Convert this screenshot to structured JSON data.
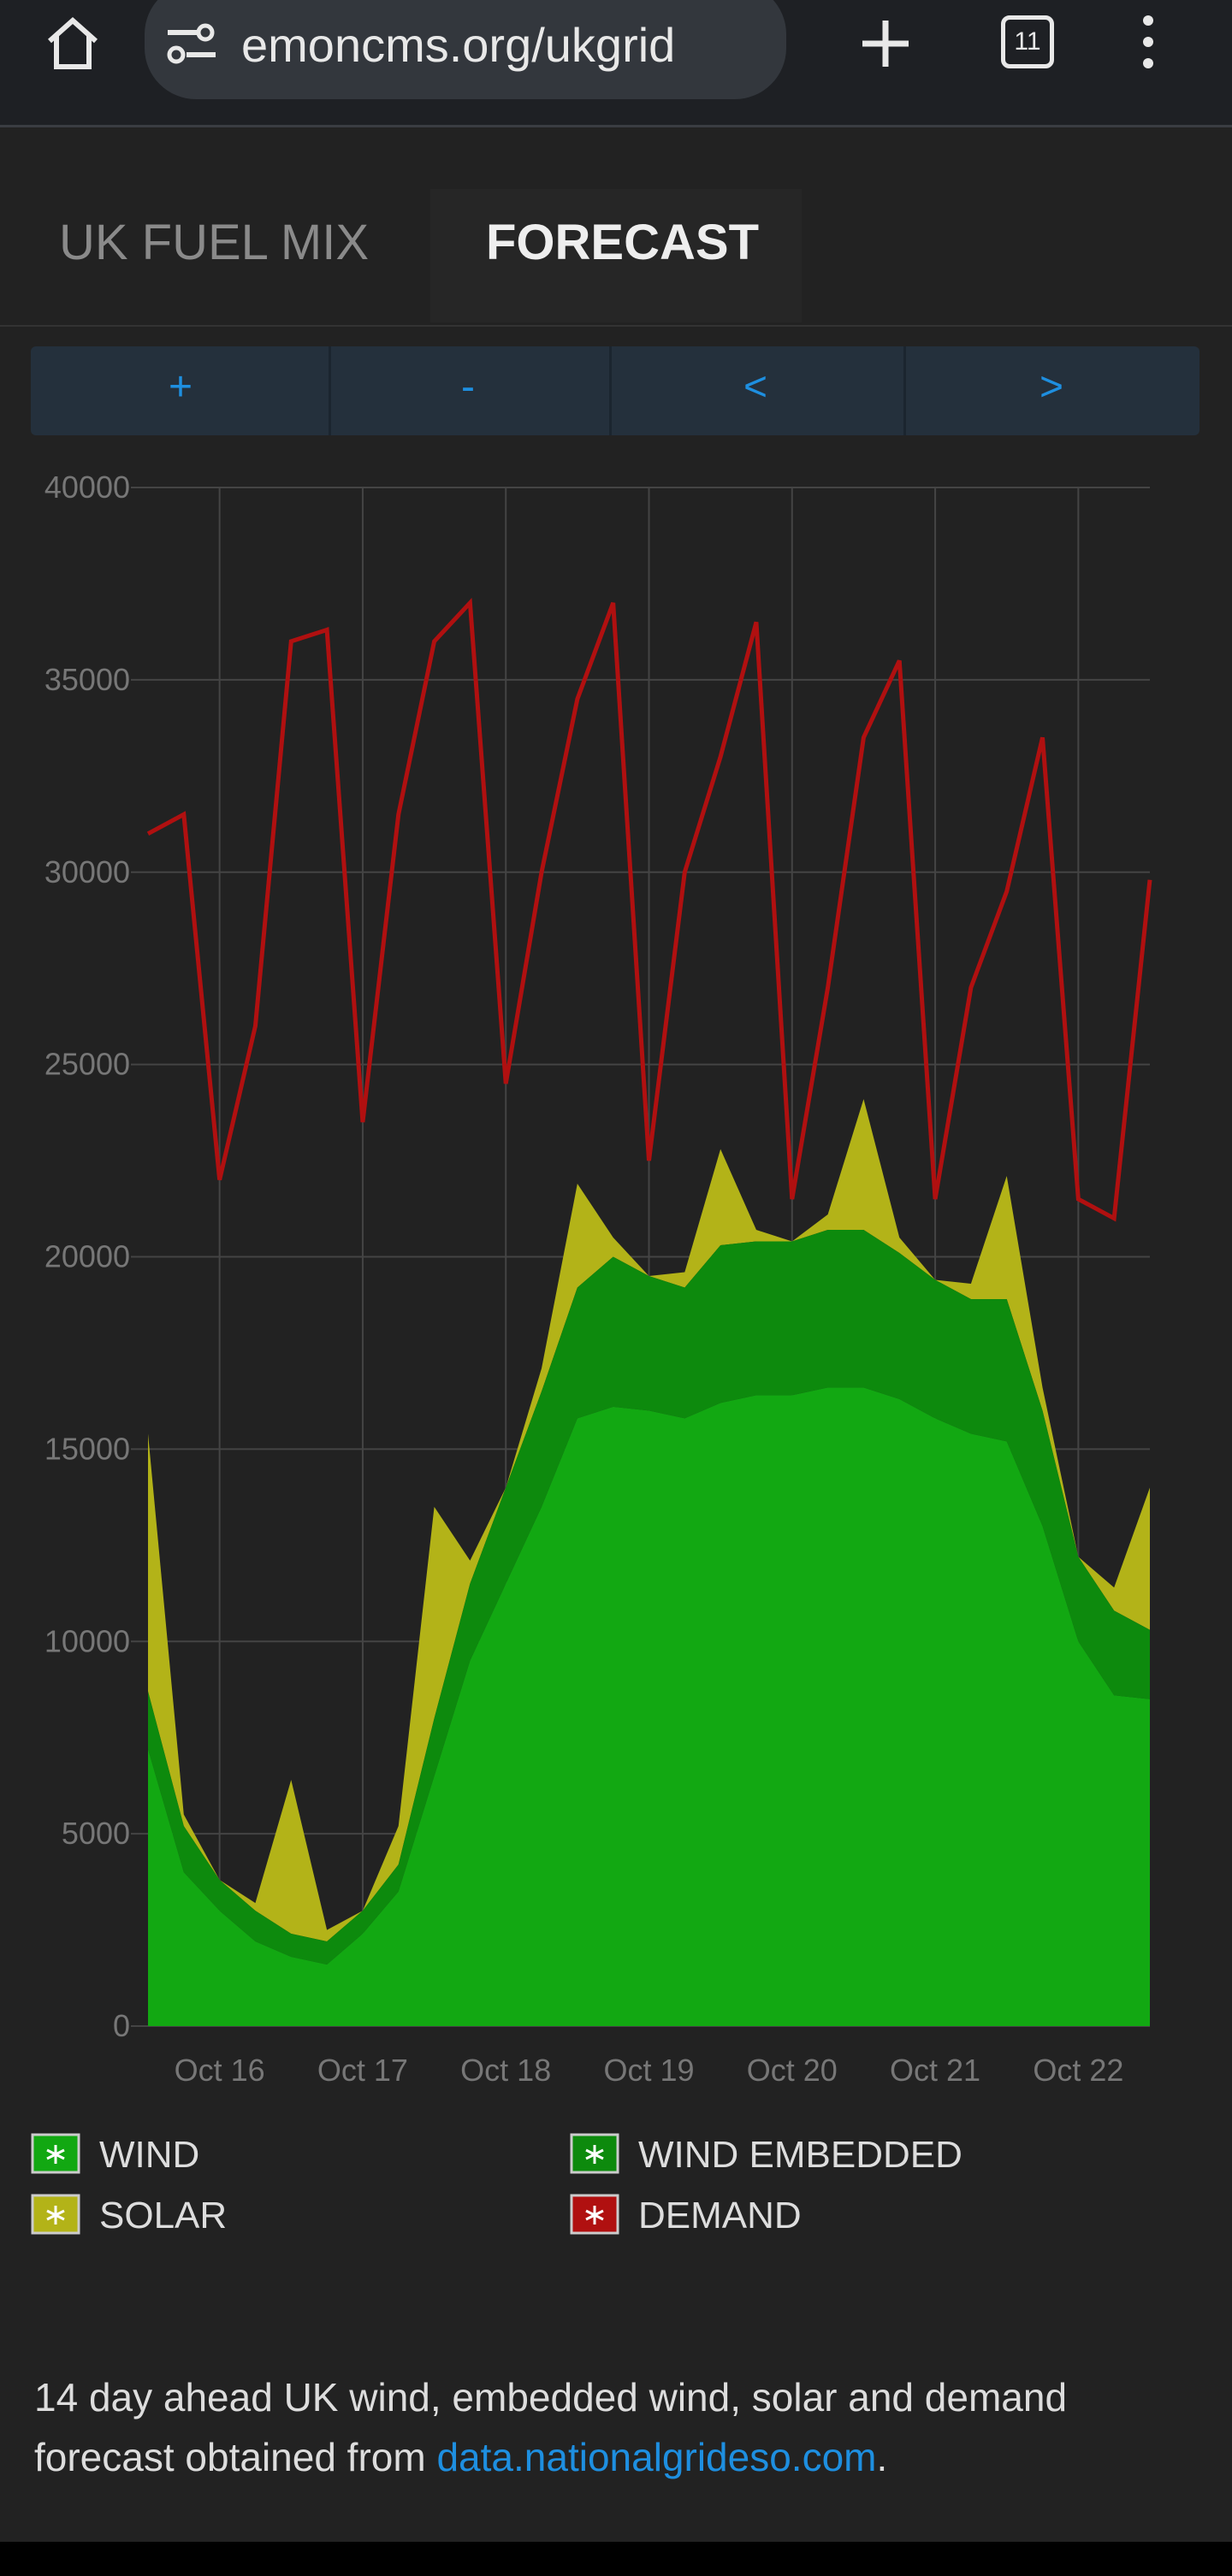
{
  "browser": {
    "url": "emoncms.org/ukgrid",
    "tab_count": "11"
  },
  "tabs": [
    "UK FUEL MIX",
    "FORECAST"
  ],
  "controls": [
    "+",
    "-",
    "<",
    ">"
  ],
  "chart_data": {
    "type": "area",
    "stacked": true,
    "grid": true,
    "x": [
      15.5,
      15.75,
      16,
      16.25,
      16.5,
      16.75,
      17,
      17.25,
      17.5,
      17.75,
      18,
      18.25,
      18.5,
      18.75,
      19,
      19.25,
      19.5,
      19.75,
      20,
      20.25,
      20.5,
      20.75,
      21,
      21.25,
      21.5,
      21.75,
      22,
      22.25,
      22.5
    ],
    "xlim": [
      15.5,
      22.5
    ],
    "xticks": [
      {
        "value": 16,
        "label": "Oct 16"
      },
      {
        "value": 17,
        "label": "Oct 17"
      },
      {
        "value": 18,
        "label": "Oct 18"
      },
      {
        "value": 19,
        "label": "Oct 19"
      },
      {
        "value": 20,
        "label": "Oct 20"
      },
      {
        "value": 21,
        "label": "Oct 21"
      },
      {
        "value": 22,
        "label": "Oct 22"
      }
    ],
    "ylim": [
      0,
      40000
    ],
    "yticks": [
      0,
      5000,
      10000,
      15000,
      20000,
      25000,
      30000,
      35000,
      40000
    ],
    "series": [
      {
        "name": "WIND",
        "color": "#12a812",
        "values": [
          7200,
          4000,
          3000,
          2200,
          1800,
          1600,
          2400,
          3500,
          6500,
          9500,
          11500,
          13500,
          15800,
          16100,
          16000,
          15800,
          16200,
          16400,
          16400,
          16600,
          16600,
          16300,
          15800,
          15400,
          15200,
          13000,
          10000,
          8600,
          8500
        ]
      },
      {
        "name": "WIND EMBEDDED",
        "color": "#0d8a0d",
        "values": [
          1500,
          1200,
          800,
          800,
          600,
          600,
          600,
          700,
          1500,
          2000,
          2500,
          3000,
          3400,
          3900,
          3500,
          3400,
          4100,
          4000,
          4000,
          4100,
          4100,
          3800,
          3600,
          3500,
          3700,
          3000,
          2200,
          2200,
          1800
        ]
      },
      {
        "name": "SOLAR",
        "color": "#b3b318",
        "values": [
          6700,
          300,
          0,
          200,
          4000,
          300,
          0,
          1000,
          5500,
          600,
          0,
          600,
          2700,
          500,
          0,
          400,
          2500,
          300,
          0,
          400,
          3400,
          400,
          0,
          400,
          3200,
          600,
          0,
          600,
          3700
        ]
      },
      {
        "name": "DEMAND",
        "type": "line",
        "color": "#b01010",
        "values": [
          31000,
          31500,
          22000,
          26000,
          36000,
          36300,
          23500,
          31500,
          36000,
          37000,
          24500,
          30000,
          34500,
          37000,
          22500,
          30000,
          33000,
          36500,
          21500,
          27000,
          33500,
          35500,
          21500,
          27000,
          29500,
          33500,
          21500,
          21000,
          29800
        ]
      }
    ]
  },
  "description": {
    "text": "14 day ahead UK wind, embedded wind, solar and demand forecast obtained from ",
    "link": "data.nationalgrideso.com",
    "end": "."
  }
}
